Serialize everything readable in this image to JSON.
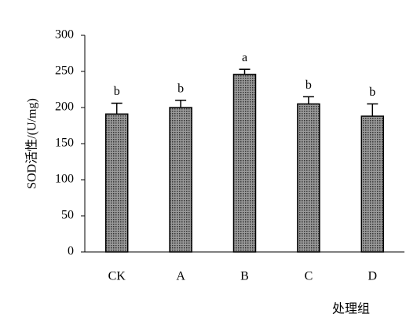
{
  "chart_data": {
    "type": "bar",
    "y_label": "SOD活性/(U/mg)",
    "x_label": "处理组",
    "categories": [
      "CK",
      "A",
      "B",
      "C",
      "D"
    ],
    "values": [
      191,
      200,
      246,
      205,
      188
    ],
    "errors": [
      15,
      10,
      7,
      10,
      17
    ],
    "letters": [
      "b",
      "b",
      "a",
      "b",
      "b"
    ],
    "color": "#555555",
    "ylim": [
      0,
      300
    ],
    "yticks": [
      0,
      50,
      100,
      150,
      200,
      250,
      300
    ],
    "grid": false
  }
}
